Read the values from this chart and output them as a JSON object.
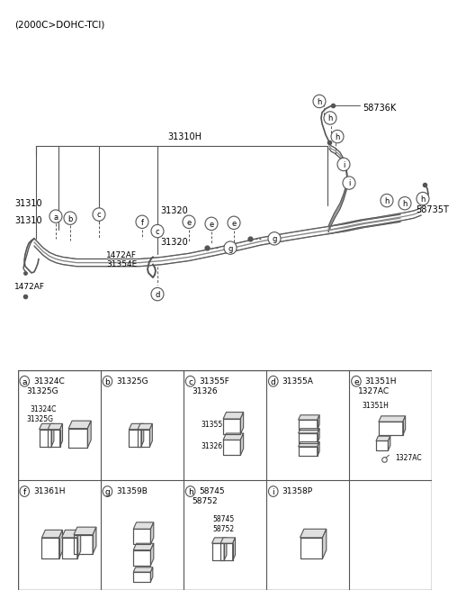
{
  "title": "(2000C>DOHC-TCI)",
  "bg_color": "#ffffff",
  "line_color": "#555555",
  "text_color": "#000000",
  "label_31310H": "31310H",
  "label_31310": "31310",
  "label_31320": "31320",
  "label_1472AF_a": "1472AF",
  "label_31354E": "31354E",
  "label_1472AF_b": "1472AF",
  "label_58736K": "58736K",
  "label_58735T": "58735T",
  "parts": [
    {
      "label": "a",
      "part1": "31324C",
      "part2": "31325G",
      "row": 0,
      "col": 0
    },
    {
      "label": "b",
      "part1": "31325G",
      "part2": "",
      "row": 0,
      "col": 1
    },
    {
      "label": "c",
      "part1": "31355F",
      "part2": "31326",
      "row": 0,
      "col": 2
    },
    {
      "label": "d",
      "part1": "31355A",
      "part2": "",
      "row": 0,
      "col": 3
    },
    {
      "label": "e",
      "part1": "31351H",
      "part2": "1327AC",
      "row": 0,
      "col": 4
    },
    {
      "label": "f",
      "part1": "31361H",
      "part2": "",
      "row": 1,
      "col": 0
    },
    {
      "label": "g",
      "part1": "31359B",
      "part2": "",
      "row": 1,
      "col": 1
    },
    {
      "label": "h",
      "part1": "58745",
      "part2": "58752",
      "row": 1,
      "col": 2
    },
    {
      "label": "i",
      "part1": "31358P",
      "part2": "",
      "row": 1,
      "col": 3
    }
  ]
}
